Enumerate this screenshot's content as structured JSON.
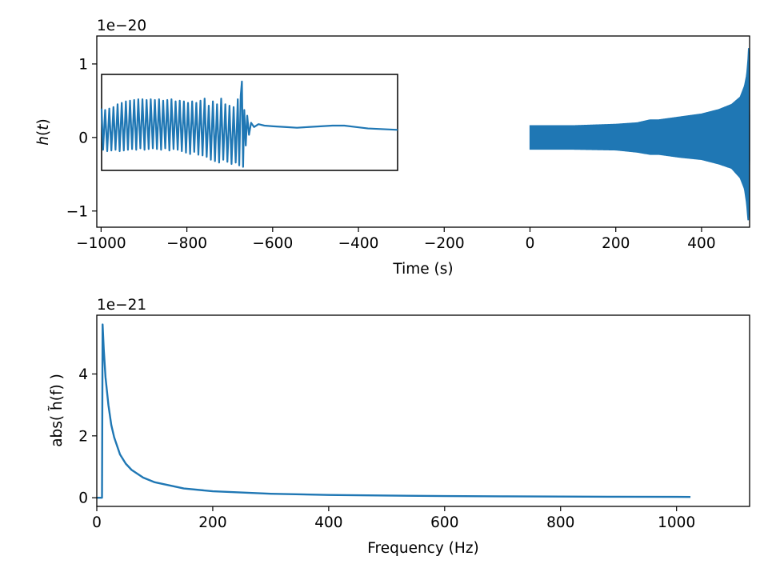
{
  "chart_data": [
    {
      "type": "line",
      "name": "time-domain",
      "xlabel": "Time (s)",
      "ylabel_main": "h",
      "ylabel_arg": "t",
      "offset_text": "1e−20",
      "xlim": [
        -1010,
        512
      ],
      "ylim": [
        -1.22,
        1.38
      ],
      "xticks": [
        -1000,
        -800,
        -600,
        -400,
        -200,
        0,
        200,
        400
      ],
      "xtick_labels": [
        "−1000",
        "−800",
        "−600",
        "−400",
        "−200",
        "0",
        "200",
        "400"
      ],
      "yticks": [
        -1,
        0,
        1
      ],
      "ytick_labels": [
        "−1",
        "0",
        "1"
      ],
      "series": [
        {
          "color": "#1f77b4",
          "style": "dense chirp oscillation",
          "x_start": 0,
          "x_end": 512,
          "envelope": {
            "t": [
              0,
              100,
              200,
              250,
              280,
              300,
              350,
              400,
              440,
              470,
              490,
              500,
              505,
              508,
              510,
              511,
              512
            ],
            "upper": [
              0.16,
              0.16,
              0.18,
              0.2,
              0.24,
              0.24,
              0.28,
              0.32,
              0.38,
              0.45,
              0.55,
              0.7,
              0.85,
              1.05,
              1.28,
              1.0,
              0.3
            ],
            "lower": [
              -0.16,
              -0.16,
              -0.17,
              -0.2,
              -0.23,
              -0.23,
              -0.27,
              -0.3,
              -0.36,
              -0.42,
              -0.55,
              -0.7,
              -0.9,
              -1.12,
              -1.12,
              -0.9,
              -0.3
            ]
          }
        }
      ],
      "inset": {
        "description_axes": "none",
        "series": [
          {
            "color": "#1f77b4",
            "points": [
              [
                0.0,
                0.42
              ],
              [
                0.005,
                -0.16
              ],
              [
                0.012,
                0.4
              ],
              [
                0.019,
                -0.18
              ],
              [
                0.026,
                0.42
              ],
              [
                0.033,
                -0.17
              ],
              [
                0.04,
                0.44
              ],
              [
                0.047,
                -0.16
              ],
              [
                0.054,
                0.48
              ],
              [
                0.061,
                -0.18
              ],
              [
                0.068,
                0.5
              ],
              [
                0.075,
                -0.17
              ],
              [
                0.082,
                0.52
              ],
              [
                0.089,
                -0.16
              ],
              [
                0.096,
                0.53
              ],
              [
                0.103,
                -0.15
              ],
              [
                0.11,
                0.54
              ],
              [
                0.117,
                -0.16
              ],
              [
                0.124,
                0.55
              ],
              [
                0.131,
                -0.14
              ],
              [
                0.138,
                0.55
              ],
              [
                0.145,
                -0.16
              ],
              [
                0.152,
                0.54
              ],
              [
                0.159,
                -0.15
              ],
              [
                0.166,
                0.55
              ],
              [
                0.173,
                -0.14
              ],
              [
                0.18,
                0.54
              ],
              [
                0.187,
                -0.15
              ],
              [
                0.194,
                0.55
              ],
              [
                0.201,
                -0.16
              ],
              [
                0.208,
                0.53
              ],
              [
                0.215,
                -0.14
              ],
              [
                0.222,
                0.54
              ],
              [
                0.229,
                -0.17
              ],
              [
                0.236,
                0.55
              ],
              [
                0.243,
                -0.15
              ],
              [
                0.25,
                0.52
              ],
              [
                0.257,
                -0.16
              ],
              [
                0.264,
                0.53
              ],
              [
                0.271,
                -0.18
              ],
              [
                0.278,
                0.52
              ],
              [
                0.285,
                -0.2
              ],
              [
                0.292,
                0.5
              ],
              [
                0.299,
                -0.22
              ],
              [
                0.306,
                0.52
              ],
              [
                0.313,
                -0.19
              ],
              [
                0.32,
                0.5
              ],
              [
                0.327,
                -0.23
              ],
              [
                0.334,
                0.53
              ],
              [
                0.341,
                -0.24
              ],
              [
                0.348,
                0.56
              ],
              [
                0.355,
                -0.26
              ],
              [
                0.362,
                0.46
              ],
              [
                0.369,
                -0.3
              ],
              [
                0.376,
                0.52
              ],
              [
                0.383,
                -0.32
              ],
              [
                0.39,
                0.48
              ],
              [
                0.397,
                -0.34
              ],
              [
                0.404,
                0.56
              ],
              [
                0.411,
                -0.3
              ],
              [
                0.418,
                0.48
              ],
              [
                0.425,
                -0.33
              ],
              [
                0.432,
                0.46
              ],
              [
                0.439,
                -0.36
              ],
              [
                0.446,
                0.44
              ],
              [
                0.453,
                -0.34
              ],
              [
                0.46,
                0.55
              ],
              [
                0.465,
                -0.38
              ],
              [
                0.47,
                0.6
              ],
              [
                0.474,
                0.8
              ],
              [
                0.478,
                -0.4
              ],
              [
                0.482,
                0.4
              ],
              [
                0.487,
                -0.1
              ],
              [
                0.492,
                0.32
              ],
              [
                0.498,
                0.05
              ],
              [
                0.505,
                0.22
              ],
              [
                0.515,
                0.16
              ],
              [
                0.53,
                0.2
              ],
              [
                0.55,
                0.18
              ],
              [
                0.58,
                0.17
              ],
              [
                0.62,
                0.16
              ],
              [
                0.66,
                0.15
              ],
              [
                0.7,
                0.16
              ],
              [
                0.74,
                0.17
              ],
              [
                0.78,
                0.18
              ],
              [
                0.82,
                0.18
              ],
              [
                0.86,
                0.16
              ],
              [
                0.9,
                0.14
              ],
              [
                0.95,
                0.13
              ],
              [
                1.0,
                0.12
              ]
            ]
          }
        ]
      }
    },
    {
      "type": "line",
      "name": "frequency-domain",
      "xlabel": "Frequency (Hz)",
      "ylabel": "abs( h̃(f) )",
      "offset_text": "1e−21",
      "xlim": [
        0,
        1126
      ],
      "ylim": [
        -0.28,
        5.9
      ],
      "xticks": [
        0,
        200,
        400,
        600,
        800,
        1000
      ],
      "xtick_labels": [
        "0",
        "200",
        "400",
        "600",
        "800",
        "1000"
      ],
      "yticks": [
        0,
        2,
        4
      ],
      "ytick_labels": [
        "0",
        "2",
        "4"
      ],
      "series": [
        {
          "color": "#1f77b4",
          "x": [
            0,
            9,
            10,
            12,
            15,
            20,
            25,
            30,
            40,
            50,
            60,
            80,
            100,
            150,
            200,
            300,
            400,
            500,
            600,
            700,
            800,
            900,
            1000,
            1024
          ],
          "y": [
            0,
            0,
            5.6,
            4.8,
            3.9,
            3.0,
            2.35,
            1.95,
            1.4,
            1.1,
            0.9,
            0.65,
            0.5,
            0.3,
            0.21,
            0.13,
            0.09,
            0.07,
            0.055,
            0.045,
            0.038,
            0.032,
            0.028,
            0.026
          ]
        }
      ]
    }
  ]
}
